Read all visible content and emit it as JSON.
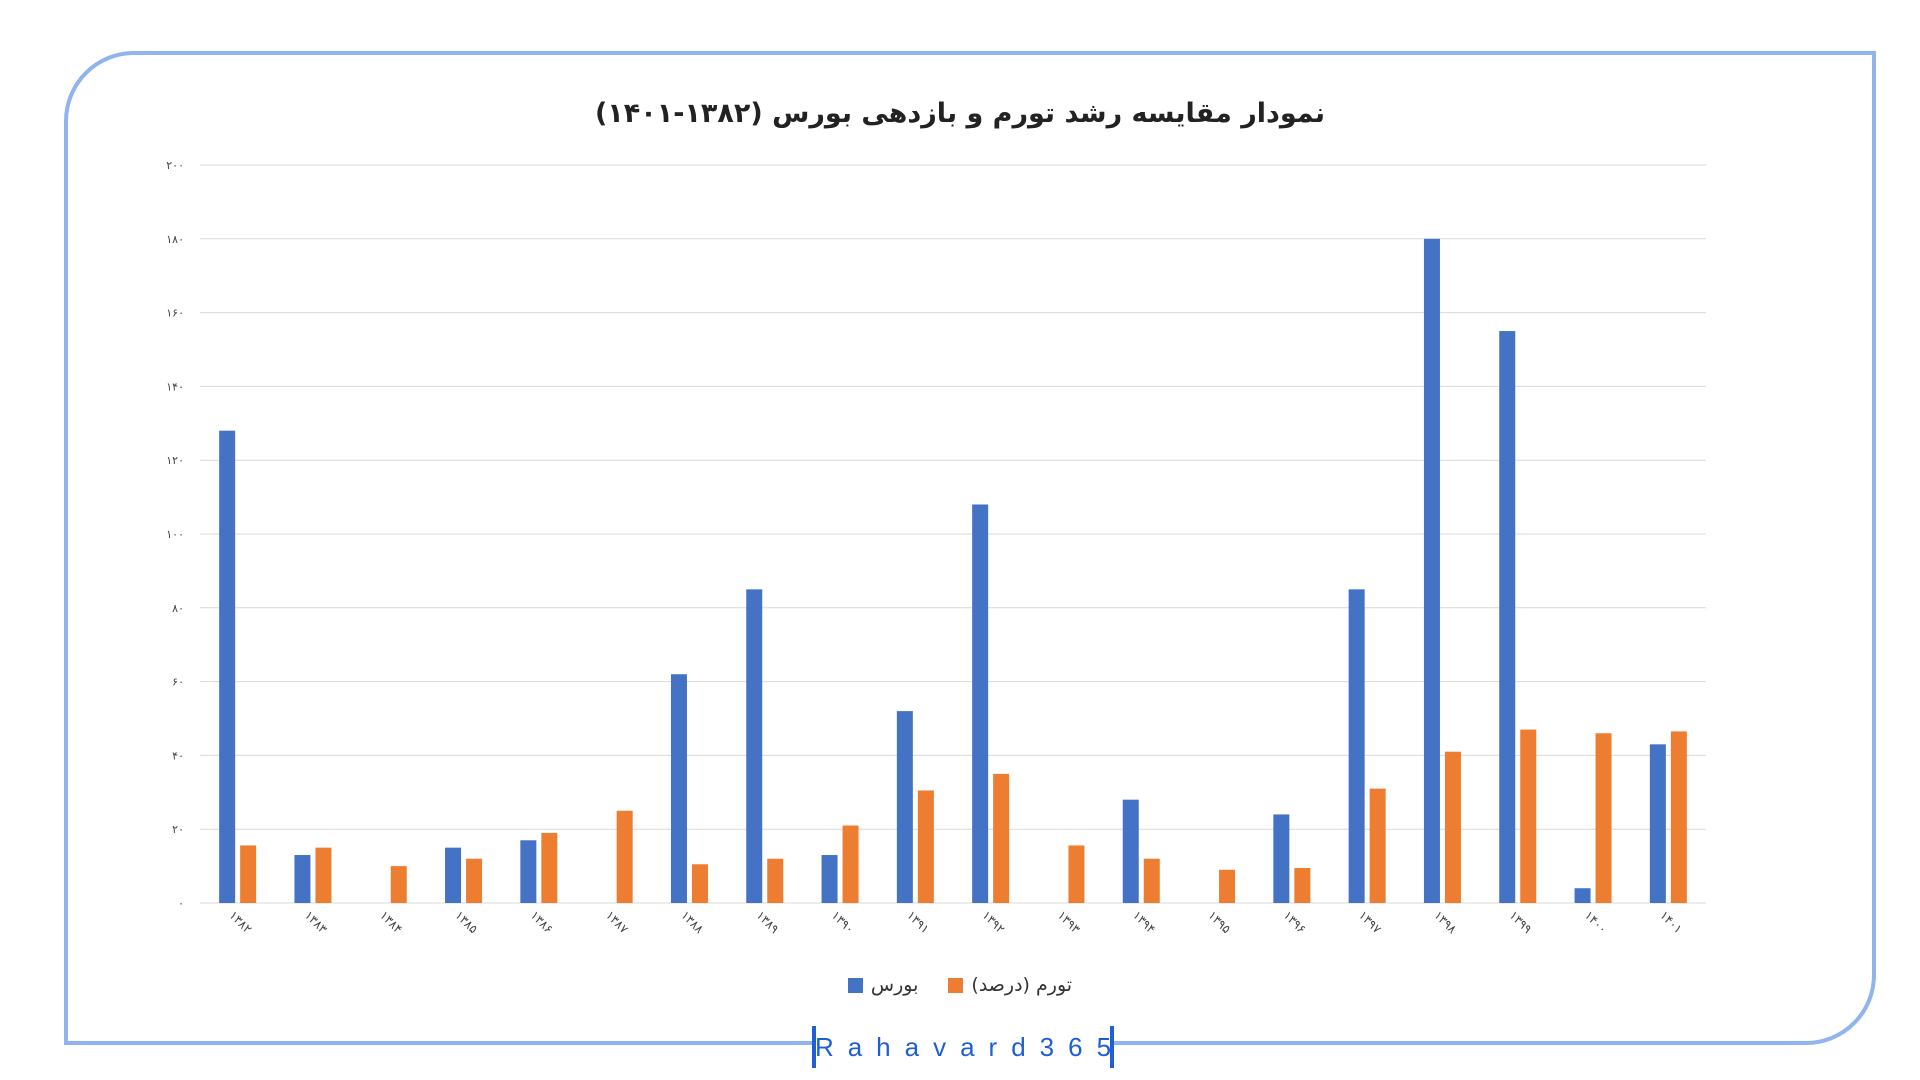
{
  "brand": {
    "text": "Rahavard365"
  },
  "colors": {
    "frame": "#8fb4ee",
    "brand": "#1f5fd6",
    "series_bourse": "#4472c4",
    "series_inflation": "#ed7d31",
    "grid": "#d9d9d9"
  },
  "chart_data": {
    "type": "bar",
    "title": "نمودار مقایسه رشد تورم و بازدهی بورس (۱۳۸۲-۱۴۰۱)",
    "xlabel": "",
    "ylabel": "",
    "ylim": [
      0,
      200
    ],
    "yticks": [
      0,
      20,
      40,
      60,
      80,
      100,
      120,
      140,
      160,
      180,
      200
    ],
    "ytick_labels": [
      "۰",
      "۲۰",
      "۴۰",
      "۶۰",
      "۸۰",
      "۱۰۰",
      "۱۲۰",
      "۱۴۰",
      "۱۶۰",
      "۱۸۰",
      "۲۰۰"
    ],
    "categories": [
      "۱۳۸۲",
      "۱۳۸۳",
      "۱۳۸۴",
      "۱۳۸۵",
      "۱۳۸۶",
      "۱۳۸۷",
      "۱۳۸۸",
      "۱۳۸۹",
      "۱۳۹۰",
      "۱۳۹۱",
      "۱۳۹۲",
      "۱۳۹۳",
      "۱۳۹۴",
      "۱۳۹۵",
      "۱۳۹۶",
      "۱۳۹۷",
      "۱۳۹۸",
      "۱۳۹۹",
      "۱۴۰۰",
      "۱۴۰۱"
    ],
    "series": [
      {
        "name": "بورس",
        "color": "#4472c4",
        "values": [
          128,
          13,
          0,
          15,
          17,
          0,
          62,
          85,
          13,
          52,
          108,
          0,
          28,
          0,
          24,
          85,
          180,
          155,
          4,
          43
        ]
      },
      {
        "name": "تورم (درصد)",
        "color": "#ed7d31",
        "values": [
          15.6,
          15,
          10,
          12,
          19,
          25,
          10.5,
          12,
          21,
          30.5,
          35,
          15.6,
          12,
          9,
          9.5,
          31,
          41,
          47,
          46,
          46.5
        ]
      }
    ],
    "grid": true,
    "legend_position": "bottom-center"
  }
}
